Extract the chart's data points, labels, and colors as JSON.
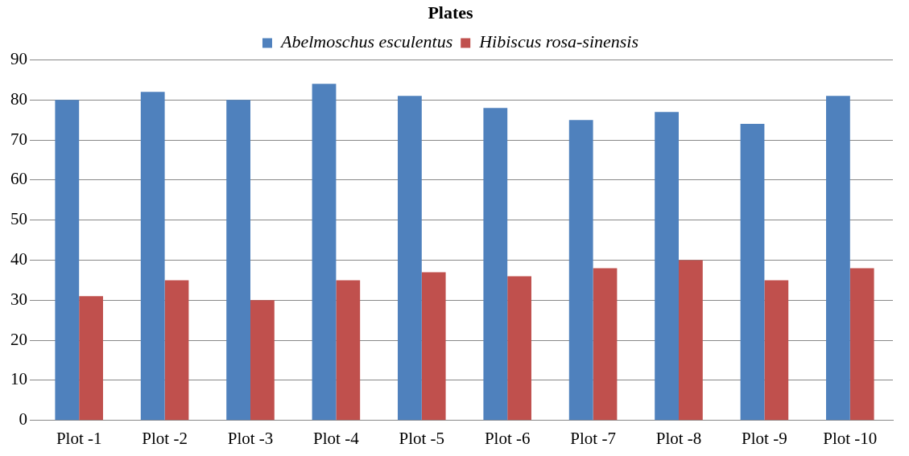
{
  "chart_data": {
    "type": "bar",
    "title": "Plates",
    "categories": [
      "Plot -1",
      "Plot -2",
      "Plot -3",
      "Plot -4",
      "Plot -5",
      "Plot -6",
      "Plot -7",
      "Plot -8",
      "Plot -9",
      "Plot -10"
    ],
    "series": [
      {
        "name": "Abelmoschus esculentus",
        "color": "#4f81bd",
        "values": [
          80,
          82,
          80,
          84,
          81,
          78,
          75,
          77,
          74,
          81
        ]
      },
      {
        "name": "Hibiscus rosa-sinensis",
        "color": "#c0504d",
        "values": [
          31,
          35,
          30,
          35,
          37,
          36,
          38,
          40,
          35,
          38
        ]
      }
    ],
    "ylim": [
      0,
      90
    ],
    "yticks": [
      0,
      10,
      20,
      30,
      40,
      50,
      60,
      70,
      80,
      90
    ],
    "grid": "y",
    "legend": "top"
  }
}
